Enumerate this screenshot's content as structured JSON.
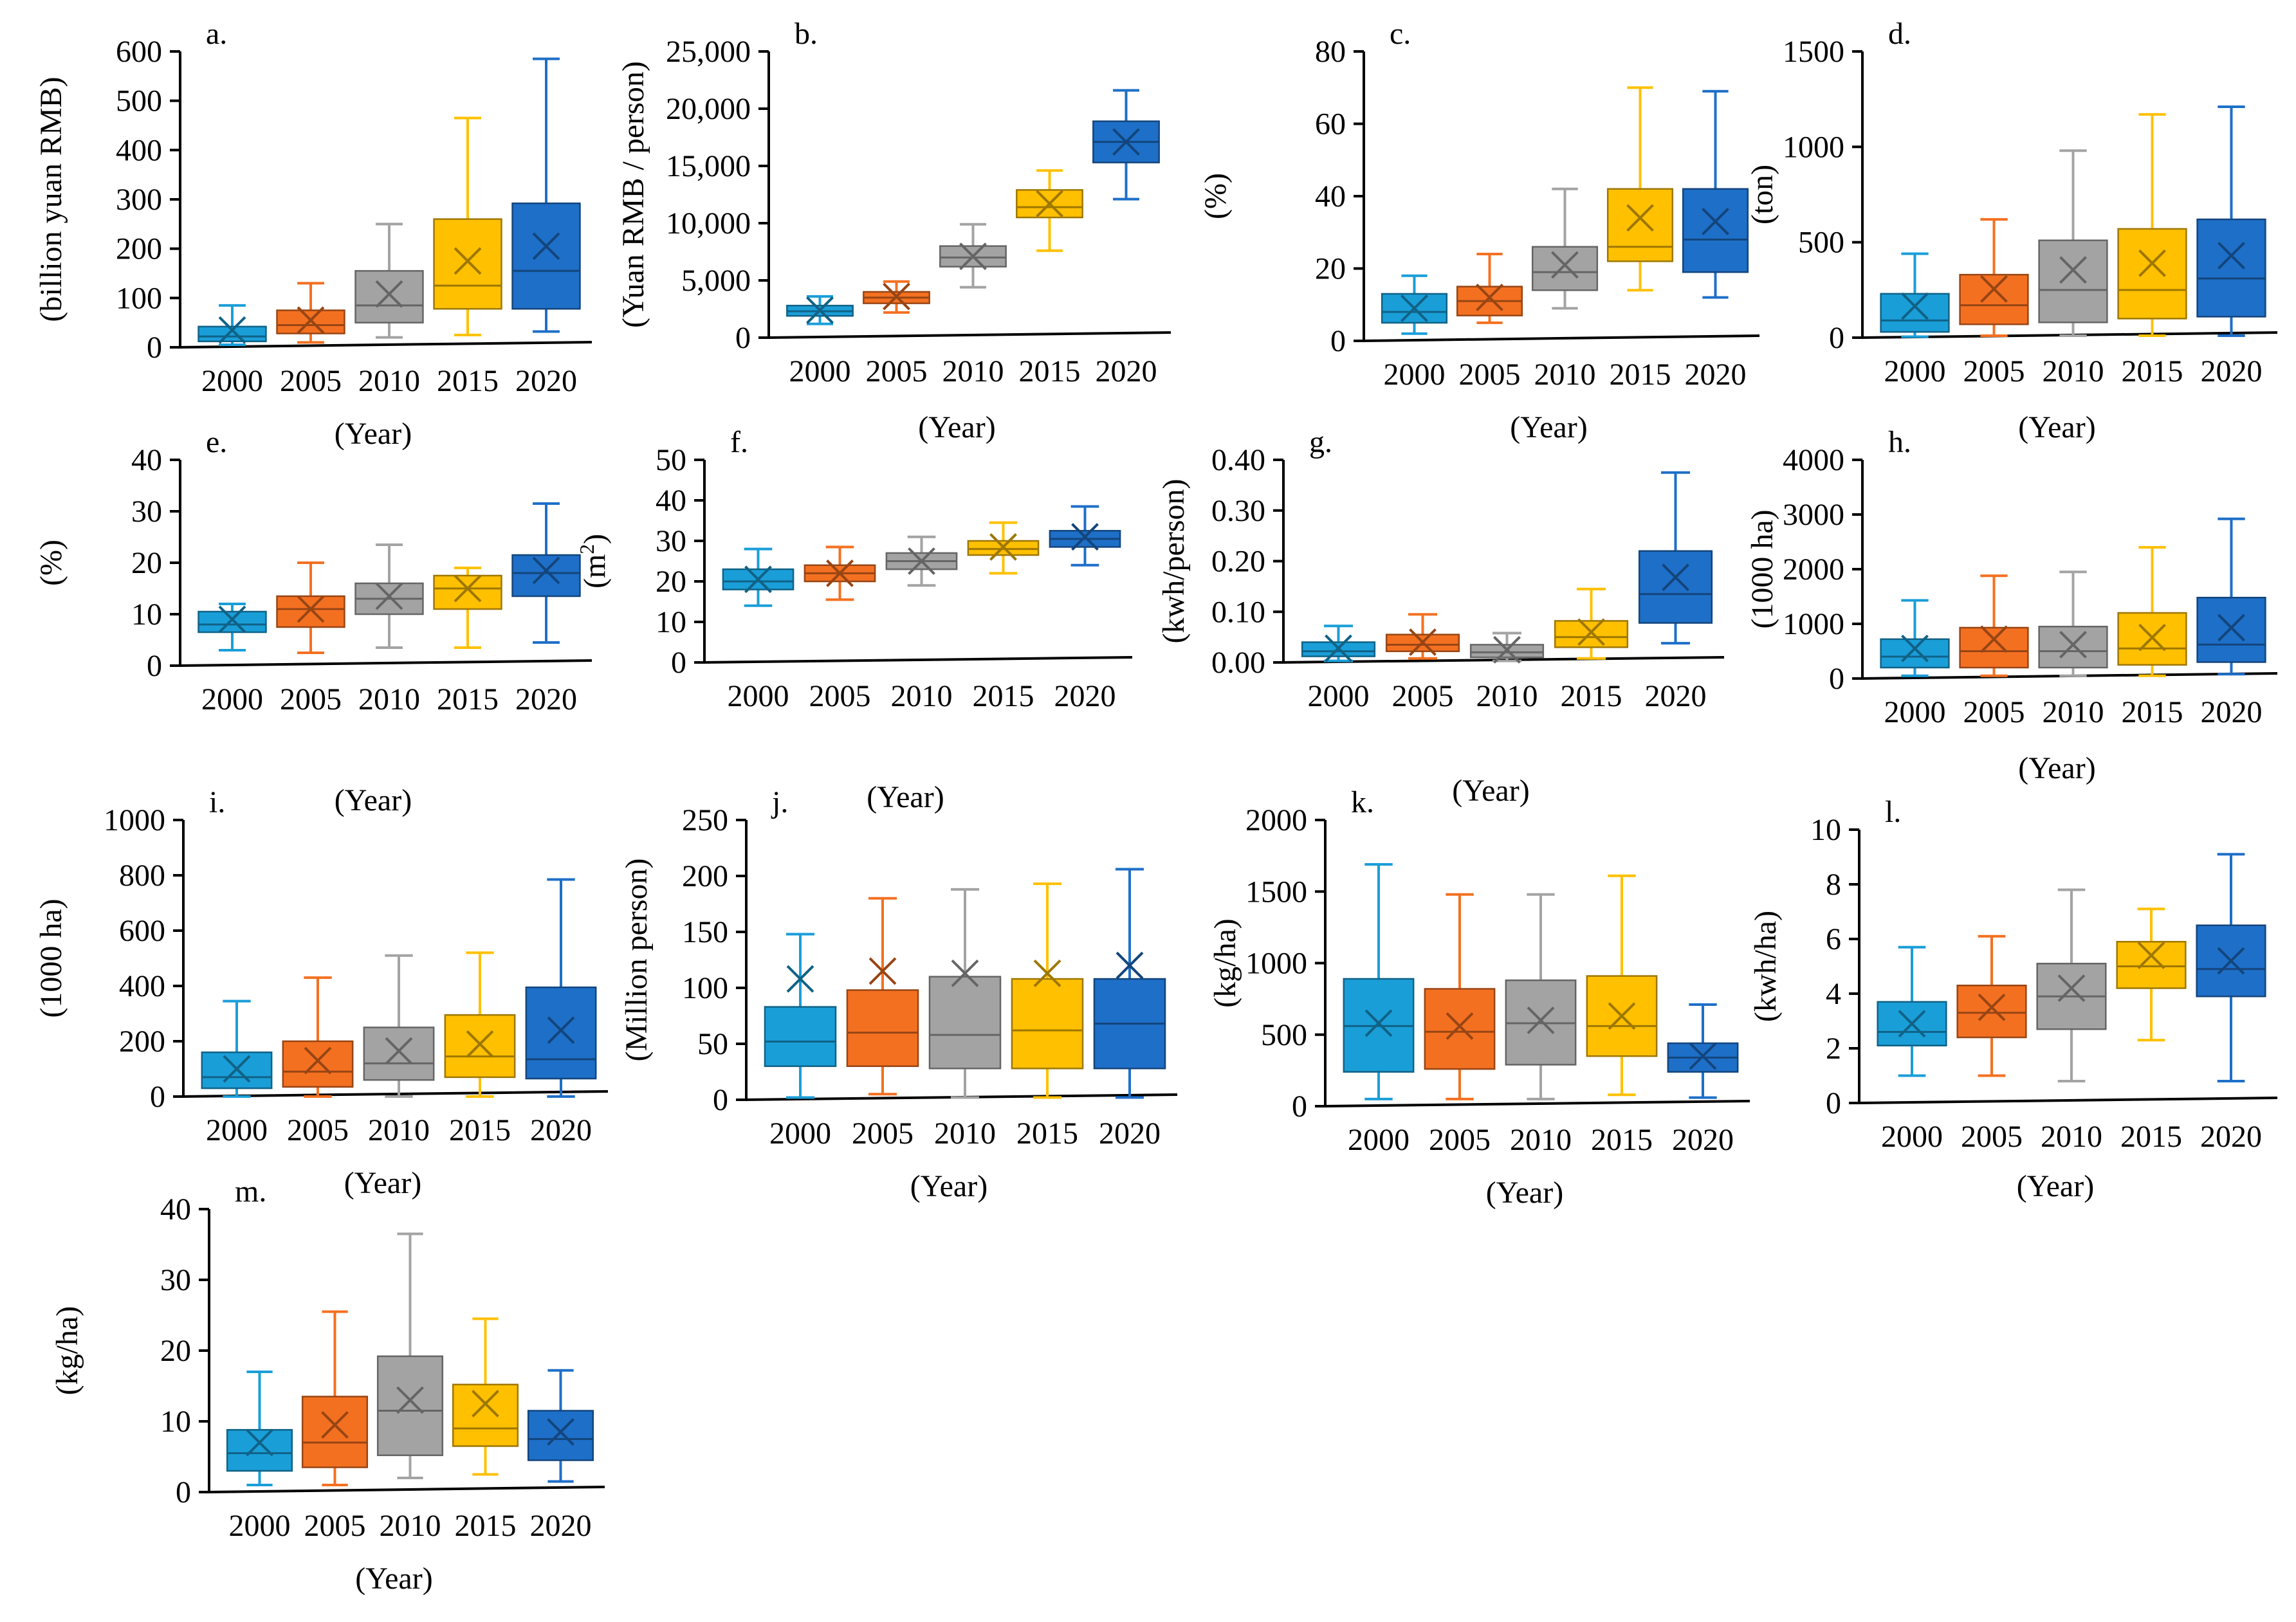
{
  "colors": [
    "#1a9ed8",
    "#f47021",
    "#a3a3a3",
    "#ffc000",
    "#1e6fc8"
  ],
  "chart_data": [
    {
      "type": "box",
      "panel_label": "a.",
      "ylabel": "(billion yuan RMB)",
      "xlabel": "(Year)",
      "categories": [
        "2000",
        "2005",
        "2010",
        "2015",
        "2020"
      ],
      "ylim": [
        0,
        600
      ],
      "yticks": [
        0,
        100,
        200,
        300,
        400,
        500,
        600
      ],
      "ytick_labels": [
        "0",
        "100",
        "200",
        "300",
        "400",
        "500",
        "600"
      ],
      "boxes": [
        {
          "min": 5,
          "q1": 12,
          "median": 22,
          "q3": 42,
          "max": 85,
          "mean": 35
        },
        {
          "min": 10,
          "q1": 28,
          "median": 45,
          "q3": 75,
          "max": 130,
          "mean": 55
        },
        {
          "min": 20,
          "q1": 50,
          "median": 85,
          "q3": 155,
          "max": 250,
          "mean": 108
        },
        {
          "min": 25,
          "q1": 78,
          "median": 125,
          "q3": 260,
          "max": 465,
          "mean": 175
        },
        {
          "min": 32,
          "q1": 78,
          "median": 155,
          "q3": 292,
          "max": 585,
          "mean": 205
        }
      ]
    },
    {
      "type": "box",
      "panel_label": "b.",
      "ylabel": "(Yuan RMB / person)",
      "xlabel": "(Year)",
      "categories": [
        "2000",
        "2005",
        "2010",
        "2015",
        "2020"
      ],
      "ylim": [
        0,
        25000
      ],
      "yticks": [
        0,
        5000,
        10000,
        15000,
        20000,
        25000
      ],
      "ytick_labels": [
        "0",
        "5,000",
        "10,000",
        "15,000",
        "20,000",
        "25,000"
      ],
      "boxes": [
        {
          "min": 1200,
          "q1": 1900,
          "median": 2300,
          "q3": 2800,
          "max": 3600,
          "mean": 2400
        },
        {
          "min": 2200,
          "q1": 3000,
          "median": 3500,
          "q3": 4000,
          "max": 4900,
          "mean": 3600
        },
        {
          "min": 4400,
          "q1": 6200,
          "median": 7000,
          "q3": 8000,
          "max": 9900,
          "mean": 7100
        },
        {
          "min": 7600,
          "q1": 10500,
          "median": 11400,
          "q3": 12900,
          "max": 14600,
          "mean": 11700
        },
        {
          "min": 12100,
          "q1": 15300,
          "median": 17100,
          "q3": 18900,
          "max": 21600,
          "mean": 17100
        }
      ]
    },
    {
      "type": "box",
      "panel_label": "c.",
      "ylabel": "(%)",
      "xlabel": "(Year)",
      "categories": [
        "2000",
        "2005",
        "2010",
        "2015",
        "2020"
      ],
      "ylim": [
        0,
        80
      ],
      "yticks": [
        0,
        20,
        40,
        60,
        80
      ],
      "ytick_labels": [
        "0",
        "20",
        "40",
        "60",
        "80"
      ],
      "boxes": [
        {
          "min": 2,
          "q1": 5,
          "median": 8,
          "q3": 13,
          "max": 18,
          "mean": 9
        },
        {
          "min": 5,
          "q1": 7,
          "median": 11,
          "q3": 15,
          "max": 24,
          "mean": 12
        },
        {
          "min": 9,
          "q1": 14,
          "median": 19,
          "q3": 26,
          "max": 42,
          "mean": 21
        },
        {
          "min": 14,
          "q1": 22,
          "median": 26,
          "q3": 42,
          "max": 70,
          "mean": 34
        },
        {
          "min": 12,
          "q1": 19,
          "median": 28,
          "q3": 42,
          "max": 69,
          "mean": 33
        }
      ]
    },
    {
      "type": "box",
      "panel_label": "d.",
      "ylabel": "(ton)",
      "xlabel": "(Year)",
      "categories": [
        "2000",
        "2005",
        "2010",
        "2015",
        "2020"
      ],
      "ylim": [
        0,
        1500
      ],
      "yticks": [
        0,
        500,
        1000,
        1500
      ],
      "ytick_labels": [
        "0",
        "500",
        "1000",
        "1500"
      ],
      "boxes": [
        {
          "min": 5,
          "q1": 30,
          "median": 90,
          "q3": 230,
          "max": 440,
          "mean": 165
        },
        {
          "min": 10,
          "q1": 70,
          "median": 170,
          "q3": 330,
          "max": 620,
          "mean": 255
        },
        {
          "min": 10,
          "q1": 80,
          "median": 250,
          "q3": 510,
          "max": 980,
          "mean": 355
        },
        {
          "min": 10,
          "q1": 100,
          "median": 250,
          "q3": 570,
          "max": 1170,
          "mean": 390
        },
        {
          "min": 10,
          "q1": 110,
          "median": 310,
          "q3": 620,
          "max": 1210,
          "mean": 430
        }
      ]
    },
    {
      "type": "box",
      "panel_label": "e.",
      "ylabel": "(%)",
      "xlabel": "(Year)",
      "categories": [
        "2000",
        "2005",
        "2010",
        "2015",
        "2020"
      ],
      "ylim": [
        0,
        40
      ],
      "yticks": [
        0,
        10,
        20,
        30,
        40
      ],
      "ytick_labels": [
        "0",
        "10",
        "20",
        "30",
        "40"
      ],
      "boxes": [
        {
          "min": 3,
          "q1": 6.5,
          "median": 8,
          "q3": 10.5,
          "max": 12,
          "mean": 9
        },
        {
          "min": 2.5,
          "q1": 7.5,
          "median": 11,
          "q3": 13.5,
          "max": 20,
          "mean": 11
        },
        {
          "min": 3.5,
          "q1": 10,
          "median": 13,
          "q3": 16,
          "max": 23.5,
          "mean": 13.5
        },
        {
          "min": 3.5,
          "q1": 11,
          "median": 15,
          "q3": 17.5,
          "max": 19,
          "mean": 15
        },
        {
          "min": 4.5,
          "q1": 13.5,
          "median": 18,
          "q3": 21.5,
          "max": 31.5,
          "mean": 18.5
        }
      ]
    },
    {
      "type": "box",
      "panel_label": "f.",
      "ylabel": "(m²)",
      "xlabel": "(Year)",
      "categories": [
        "2000",
        "2005",
        "2010",
        "2015",
        "2020"
      ],
      "ylim": [
        0,
        50
      ],
      "yticks": [
        0,
        10,
        20,
        30,
        40,
        50
      ],
      "ytick_labels": [
        "0",
        "10",
        "20",
        "30",
        "40",
        "50"
      ],
      "boxes": [
        {
          "min": 14,
          "q1": 18,
          "median": 20,
          "q3": 23,
          "max": 28,
          "mean": 20.5
        },
        {
          "min": 15.5,
          "q1": 20,
          "median": 22,
          "q3": 24,
          "max": 28.5,
          "mean": 22
        },
        {
          "min": 19,
          "q1": 23,
          "median": 25,
          "q3": 27,
          "max": 31,
          "mean": 25
        },
        {
          "min": 22,
          "q1": 26.5,
          "median": 28,
          "q3": 30,
          "max": 34.5,
          "mean": 28.5
        },
        {
          "min": 24,
          "q1": 28.5,
          "median": 30.5,
          "q3": 32.5,
          "max": 38.5,
          "mean": 31
        }
      ]
    },
    {
      "type": "box",
      "panel_label": "g.",
      "ylabel": "(kwh/person)",
      "xlabel": "(Year)",
      "categories": [
        "2000",
        "2005",
        "2010",
        "2015",
        "2020"
      ],
      "ylim": [
        0,
        0.4
      ],
      "yticks": [
        0,
        0.1,
        0.2,
        0.3,
        0.4
      ],
      "ytick_labels": [
        "0.00",
        "0.10",
        "0.20",
        "0.30",
        "0.40"
      ],
      "boxes": [
        {
          "min": 0.003,
          "q1": 0.012,
          "median": 0.022,
          "q3": 0.04,
          "max": 0.072,
          "mean": 0.028
        },
        {
          "min": 0.008,
          "q1": 0.022,
          "median": 0.035,
          "q3": 0.055,
          "max": 0.095,
          "mean": 0.04
        },
        {
          "min": 0.003,
          "q1": 0.01,
          "median": 0.02,
          "q3": 0.035,
          "max": 0.058,
          "mean": 0.025
        },
        {
          "min": 0.008,
          "q1": 0.03,
          "median": 0.05,
          "q3": 0.082,
          "max": 0.145,
          "mean": 0.06
        },
        {
          "min": 0.038,
          "q1": 0.078,
          "median": 0.135,
          "q3": 0.22,
          "max": 0.375,
          "mean": 0.168
        }
      ]
    },
    {
      "type": "box",
      "panel_label": "h.",
      "ylabel": "(1000 ha)",
      "xlabel": "(Year)",
      "categories": [
        "2000",
        "2005",
        "2010",
        "2015",
        "2020"
      ],
      "ylim": [
        0,
        4000
      ],
      "yticks": [
        0,
        1000,
        2000,
        3000,
        4000
      ],
      "ytick_labels": [
        "0",
        "1000",
        "2000",
        "3000",
        "4000"
      ],
      "boxes": [
        {
          "min": 50,
          "q1": 200,
          "median": 400,
          "q3": 720,
          "max": 1430,
          "mean": 550
        },
        {
          "min": 50,
          "q1": 200,
          "median": 500,
          "q3": 930,
          "max": 1880,
          "mean": 720
        },
        {
          "min": 50,
          "q1": 200,
          "median": 500,
          "q3": 950,
          "max": 1950,
          "mean": 620
        },
        {
          "min": 50,
          "q1": 250,
          "median": 550,
          "q3": 1200,
          "max": 2400,
          "mean": 750
        },
        {
          "min": 80,
          "q1": 300,
          "median": 620,
          "q3": 1480,
          "max": 2920,
          "mean": 930
        }
      ]
    },
    {
      "type": "box",
      "panel_label": "i.",
      "ylabel": "(1000 ha)",
      "xlabel": "(Year)",
      "categories": [
        "2000",
        "2005",
        "2010",
        "2015",
        "2020"
      ],
      "ylim": [
        0,
        1000
      ],
      "yticks": [
        0,
        200,
        400,
        600,
        800,
        1000
      ],
      "ytick_labels": [
        "0",
        "200",
        "400",
        "600",
        "800",
        "1000"
      ],
      "boxes": [
        {
          "min": 0,
          "q1": 30,
          "median": 70,
          "q3": 160,
          "max": 345,
          "mean": 100
        },
        {
          "min": 0,
          "q1": 35,
          "median": 90,
          "q3": 200,
          "max": 430,
          "mean": 130
        },
        {
          "min": 0,
          "q1": 60,
          "median": 120,
          "q3": 250,
          "max": 510,
          "mean": 165
        },
        {
          "min": 0,
          "q1": 70,
          "median": 145,
          "q3": 295,
          "max": 520,
          "mean": 190
        },
        {
          "min": 0,
          "q1": 65,
          "median": 135,
          "q3": 395,
          "max": 785,
          "mean": 240
        }
      ]
    },
    {
      "type": "box",
      "panel_label": "j.",
      "ylabel": "(Million person)",
      "xlabel": "(Year)",
      "categories": [
        "2000",
        "2005",
        "2010",
        "2015",
        "2020"
      ],
      "ylim": [
        0,
        250
      ],
      "yticks": [
        0,
        50,
        100,
        150,
        200,
        250
      ],
      "ytick_labels": [
        "0",
        "50",
        "100",
        "150",
        "200",
        "250"
      ],
      "boxes": [
        {
          "min": 2,
          "q1": 30,
          "median": 52,
          "q3": 83,
          "max": 148,
          "mean": 108
        },
        {
          "min": 5,
          "q1": 30,
          "median": 60,
          "q3": 98,
          "max": 180,
          "mean": 115
        },
        {
          "min": 2,
          "q1": 28,
          "median": 58,
          "q3": 110,
          "max": 188,
          "mean": 113
        },
        {
          "min": 2,
          "q1": 28,
          "median": 62,
          "q3": 108,
          "max": 193,
          "mean": 113
        },
        {
          "min": 2,
          "q1": 28,
          "median": 68,
          "q3": 108,
          "max": 206,
          "mean": 120
        }
      ]
    },
    {
      "type": "box",
      "panel_label": "k.",
      "ylabel": "(kg/ha)",
      "xlabel": "(Year)",
      "categories": [
        "2000",
        "2005",
        "2010",
        "2015",
        "2020"
      ],
      "ylim": [
        0,
        2000
      ],
      "yticks": [
        0,
        500,
        1000,
        1500,
        2000
      ],
      "ytick_labels": [
        "0",
        "500",
        "1000",
        "1500",
        "2000"
      ],
      "boxes": [
        {
          "min": 50,
          "q1": 240,
          "median": 560,
          "q3": 890,
          "max": 1690,
          "mean": 580
        },
        {
          "min": 50,
          "q1": 260,
          "median": 520,
          "q3": 820,
          "max": 1480,
          "mean": 560
        },
        {
          "min": 50,
          "q1": 290,
          "median": 580,
          "q3": 880,
          "max": 1480,
          "mean": 600
        },
        {
          "min": 80,
          "q1": 350,
          "median": 560,
          "q3": 910,
          "max": 1610,
          "mean": 630
        },
        {
          "min": 60,
          "q1": 240,
          "median": 340,
          "q3": 440,
          "max": 710,
          "mean": 350
        }
      ]
    },
    {
      "type": "box",
      "panel_label": "l.",
      "ylabel": "(kwh/ha)",
      "xlabel": "(Year)",
      "categories": [
        "2000",
        "2005",
        "2010",
        "2015",
        "2020"
      ],
      "ylim": [
        0,
        10
      ],
      "yticks": [
        0,
        2,
        4,
        6,
        8,
        10
      ],
      "ytick_labels": [
        "0",
        "2",
        "4",
        "6",
        "8",
        "10"
      ],
      "boxes": [
        {
          "min": 1,
          "q1": 2.1,
          "median": 2.6,
          "q3": 3.7,
          "max": 5.7,
          "mean": 2.9
        },
        {
          "min": 1,
          "q1": 2.4,
          "median": 3.3,
          "q3": 4.3,
          "max": 6.1,
          "mean": 3.5
        },
        {
          "min": 0.8,
          "q1": 2.7,
          "median": 3.9,
          "q3": 5.1,
          "max": 7.8,
          "mean": 4.2
        },
        {
          "min": 2.3,
          "q1": 4.2,
          "median": 5,
          "q3": 5.9,
          "max": 7.1,
          "mean": 5.4
        },
        {
          "min": 0.8,
          "q1": 3.9,
          "median": 4.9,
          "q3": 6.5,
          "max": 9.1,
          "mean": 5.2
        }
      ]
    },
    {
      "type": "box",
      "panel_label": "m.",
      "ylabel": "(kg/ha)",
      "xlabel": "(Year)",
      "categories": [
        "2000",
        "2005",
        "2010",
        "2015",
        "2020"
      ],
      "ylim": [
        0,
        40
      ],
      "yticks": [
        0,
        10,
        20,
        30,
        40
      ],
      "ytick_labels": [
        "0",
        "10",
        "20",
        "30",
        "40"
      ],
      "boxes": [
        {
          "min": 1,
          "q1": 3,
          "median": 5.5,
          "q3": 8.8,
          "max": 17,
          "mean": 7
        },
        {
          "min": 1,
          "q1": 3.5,
          "median": 7,
          "q3": 13.5,
          "max": 25.5,
          "mean": 9.5
        },
        {
          "min": 2,
          "q1": 5.2,
          "median": 11.5,
          "q3": 19.2,
          "max": 36.5,
          "mean": 13
        },
        {
          "min": 2.5,
          "q1": 6.5,
          "median": 9,
          "q3": 15.2,
          "max": 24.5,
          "mean": 12.5
        },
        {
          "min": 1.5,
          "q1": 4.5,
          "median": 7.5,
          "q3": 11.5,
          "max": 17.2,
          "mean": 8.5
        }
      ]
    }
  ]
}
